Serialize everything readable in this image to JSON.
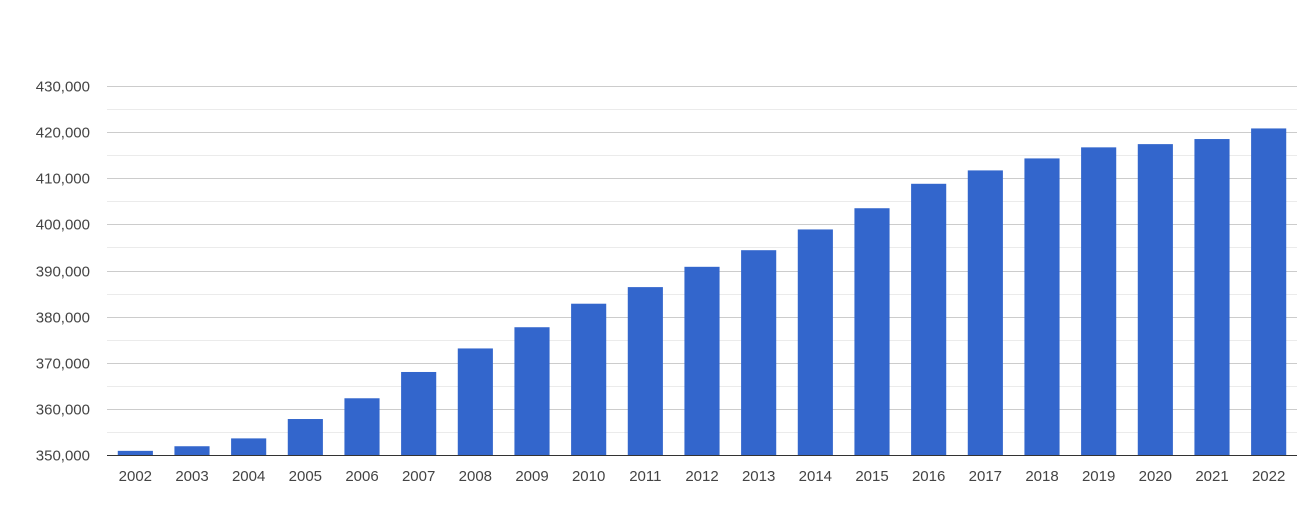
{
  "chart_data": {
    "type": "bar",
    "title": "",
    "xlabel": "",
    "ylabel": "",
    "categories": [
      "2002",
      "2003",
      "2004",
      "2005",
      "2006",
      "2007",
      "2008",
      "2009",
      "2010",
      "2011",
      "2012",
      "2013",
      "2014",
      "2015",
      "2016",
      "2017",
      "2018",
      "2019",
      "2020",
      "2021",
      "2022"
    ],
    "values": [
      350900,
      351900,
      353600,
      357800,
      362300,
      368000,
      373100,
      377700,
      382800,
      386400,
      390800,
      394400,
      398900,
      403500,
      408800,
      411700,
      414300,
      416700,
      417400,
      418500,
      420800
    ],
    "ylim": [
      350000,
      430000
    ],
    "yticks": [
      350000,
      360000,
      370000,
      380000,
      390000,
      400000,
      410000,
      420000,
      430000
    ],
    "ytick_labels": [
      "350,000",
      "360,000",
      "370,000",
      "380,000",
      "390,000",
      "400,000",
      "410,000",
      "420,000",
      "430,000"
    ],
    "grid": true,
    "minor_grid": true,
    "legend": "none",
    "bar_color": "#3366cc",
    "grid_color": "#cccccc",
    "minor_grid_color": "#ebebeb"
  }
}
